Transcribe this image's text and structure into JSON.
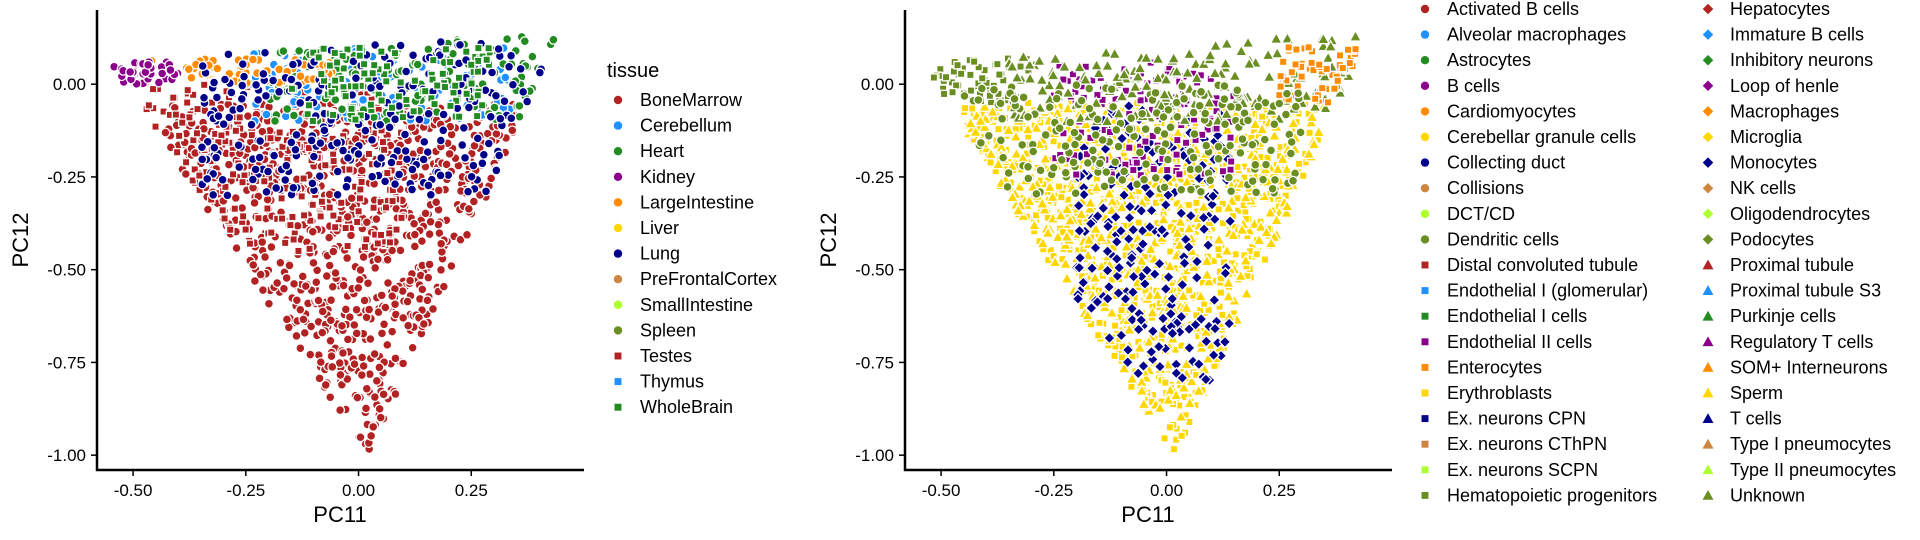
{
  "chart_data": [
    {
      "type": "scatter",
      "title": "",
      "xlabel": "PC11",
      "ylabel": "PC12",
      "xlim": [
        -0.58,
        0.5
      ],
      "ylim": [
        -1.04,
        0.2
      ],
      "xticks": [
        "-0.50",
        "-0.25",
        "0.00",
        "0.25"
      ],
      "yticks": [
        "0.00",
        "-0.25",
        "-0.50",
        "-0.75",
        "-1.00"
      ],
      "grid": false,
      "legend": {
        "title": "tissue",
        "position": "right",
        "entries": [
          {
            "label": "BoneMarrow",
            "color": "#B22222",
            "shape": "circle"
          },
          {
            "label": "Cerebellum",
            "color": "#1E90FF",
            "shape": "circle"
          },
          {
            "label": "Heart",
            "color": "#228B22",
            "shape": "circle"
          },
          {
            "label": "Kidney",
            "color": "#8B008B",
            "shape": "circle"
          },
          {
            "label": "LargeIntestine",
            "color": "#FF8C00",
            "shape": "circle"
          },
          {
            "label": "Liver",
            "color": "#FFD700",
            "shape": "circle"
          },
          {
            "label": "Lung",
            "color": "#00008B",
            "shape": "circle"
          },
          {
            "label": "PreFrontalCortex",
            "color": "#CD853F",
            "shape": "circle"
          },
          {
            "label": "SmallIntestine",
            "color": "#ADFF2F",
            "shape": "circle"
          },
          {
            "label": "Spleen",
            "color": "#6B8E23",
            "shape": "circle"
          },
          {
            "label": "Testes",
            "color": "#B22222",
            "shape": "square"
          },
          {
            "label": "Thymus",
            "color": "#1E90FF",
            "shape": "square"
          },
          {
            "label": "WholeBrain",
            "color": "#228B22",
            "shape": "square"
          }
        ]
      },
      "groups": [
        {
          "name": "BoneMarrow",
          "x_range": [
            -0.45,
            0.42
          ],
          "y_range": [
            -1.0,
            -0.05
          ],
          "note_shape": "circle"
        },
        {
          "name": "Testes",
          "x_range": [
            -0.5,
            0.1
          ],
          "y_range": [
            -0.45,
            0.0
          ]
        },
        {
          "name": "Cerebellum",
          "x_range": [
            -0.25,
            0.35
          ],
          "y_range": [
            -0.1,
            0.1
          ]
        },
        {
          "name": "Heart",
          "x_range": [
            -0.2,
            0.45
          ],
          "y_range": [
            -0.1,
            0.13
          ]
        },
        {
          "name": "LargeIntestine",
          "x_range": [
            -0.5,
            -0.05
          ],
          "y_range": [
            0.0,
            0.07
          ]
        },
        {
          "name": "Lung",
          "x_range": [
            -0.35,
            0.42
          ],
          "y_range": [
            -0.3,
            0.12
          ]
        },
        {
          "name": "Kidney",
          "x_range": [
            -0.55,
            -0.4
          ],
          "y_range": [
            0.0,
            0.06
          ]
        },
        {
          "name": "WholeBrain",
          "x_range": [
            -0.15,
            0.3
          ],
          "y_range": [
            -0.1,
            0.1
          ]
        }
      ]
    },
    {
      "type": "scatter",
      "title": "",
      "xlabel": "PC11",
      "ylabel": "PC12",
      "xlim": [
        -0.58,
        0.5
      ],
      "ylim": [
        -1.04,
        0.2
      ],
      "xticks": [
        "-0.50",
        "-0.25",
        "0.00",
        "0.25"
      ],
      "yticks": [
        "0.00",
        "-0.25",
        "-0.50",
        "-0.75",
        "-1.00"
      ],
      "grid": false,
      "legend": {
        "position": "right",
        "entries": [
          {
            "label": "Activated B cells",
            "color": "#B22222",
            "shape": "circle"
          },
          {
            "label": "Alveolar macrophages",
            "color": "#1E90FF",
            "shape": "circle"
          },
          {
            "label": "Astrocytes",
            "color": "#228B22",
            "shape": "circle"
          },
          {
            "label": "B cells",
            "color": "#8B008B",
            "shape": "circle"
          },
          {
            "label": "Cardiomyocytes",
            "color": "#FF8C00",
            "shape": "circle"
          },
          {
            "label": "Cerebellar granule cells",
            "color": "#FFD700",
            "shape": "circle"
          },
          {
            "label": "Collecting duct",
            "color": "#00008B",
            "shape": "circle"
          },
          {
            "label": "Collisions",
            "color": "#CD853F",
            "shape": "circle"
          },
          {
            "label": "DCT/CD",
            "color": "#ADFF2F",
            "shape": "circle"
          },
          {
            "label": "Dendritic cells",
            "color": "#6B8E23",
            "shape": "circle"
          },
          {
            "label": "Distal convoluted tubule",
            "color": "#B22222",
            "shape": "square"
          },
          {
            "label": "Endothelial I (glomerular)",
            "color": "#1E90FF",
            "shape": "square"
          },
          {
            "label": "Endothelial I cells",
            "color": "#228B22",
            "shape": "square"
          },
          {
            "label": "Endothelial II cells",
            "color": "#8B008B",
            "shape": "square"
          },
          {
            "label": "Enterocytes",
            "color": "#FF8C00",
            "shape": "square"
          },
          {
            "label": "Erythroblasts",
            "color": "#FFD700",
            "shape": "square"
          },
          {
            "label": "Ex. neurons CPN",
            "color": "#00008B",
            "shape": "square"
          },
          {
            "label": "Ex. neurons CThPN",
            "color": "#CD853F",
            "shape": "square"
          },
          {
            "label": "Ex. neurons SCPN",
            "color": "#ADFF2F",
            "shape": "square"
          },
          {
            "label": "Hematopoietic progenitors",
            "color": "#6B8E23",
            "shape": "square"
          },
          {
            "label": "Hepatocytes",
            "color": "#B22222",
            "shape": "diamond"
          },
          {
            "label": "Immature B cells",
            "color": "#1E90FF",
            "shape": "diamond"
          },
          {
            "label": "Inhibitory neurons",
            "color": "#228B22",
            "shape": "diamond"
          },
          {
            "label": "Loop of henle",
            "color": "#8B008B",
            "shape": "diamond"
          },
          {
            "label": "Macrophages",
            "color": "#FF8C00",
            "shape": "diamond"
          },
          {
            "label": "Microglia",
            "color": "#FFD700",
            "shape": "diamond"
          },
          {
            "label": "Monocytes",
            "color": "#00008B",
            "shape": "diamond"
          },
          {
            "label": "NK cells",
            "color": "#CD853F",
            "shape": "diamond"
          },
          {
            "label": "Oligodendrocytes",
            "color": "#ADFF2F",
            "shape": "diamond"
          },
          {
            "label": "Podocytes",
            "color": "#6B8E23",
            "shape": "diamond"
          },
          {
            "label": "Proximal tubule",
            "color": "#B22222",
            "shape": "triangle"
          },
          {
            "label": "Proximal tubule S3",
            "color": "#1E90FF",
            "shape": "triangle"
          },
          {
            "label": "Purkinje cells",
            "color": "#228B22",
            "shape": "triangle"
          },
          {
            "label": "Regulatory T cells",
            "color": "#8B008B",
            "shape": "triangle"
          },
          {
            "label": "SOM+ Interneurons",
            "color": "#FF8C00",
            "shape": "triangle"
          },
          {
            "label": "Sperm",
            "color": "#FFD700",
            "shape": "triangle"
          },
          {
            "label": "T cells",
            "color": "#00008B",
            "shape": "triangle"
          },
          {
            "label": "Type I pneumocytes",
            "color": "#CD853F",
            "shape": "triangle"
          },
          {
            "label": "Type II pneumocytes",
            "color": "#ADFF2F",
            "shape": "triangle"
          },
          {
            "label": "Unknown",
            "color": "#6B8E23",
            "shape": "triangle"
          }
        ]
      },
      "groups": [
        {
          "name": "Erythroblasts",
          "x_range": [
            -0.45,
            0.35
          ],
          "y_range": [
            -1.0,
            -0.05
          ]
        },
        {
          "name": "Sperm",
          "x_range": [
            -0.45,
            0.35
          ],
          "y_range": [
            -0.9,
            -0.05
          ]
        },
        {
          "name": "Monocytes",
          "x_range": [
            -0.2,
            0.15
          ],
          "y_range": [
            -0.8,
            -0.05
          ]
        },
        {
          "name": "Endothelial II cells",
          "x_range": [
            -0.25,
            0.15
          ],
          "y_range": [
            -0.25,
            0.06
          ]
        },
        {
          "name": "Hematopoietic progenitors",
          "x_range": [
            -0.55,
            -0.3
          ],
          "y_range": [
            -0.05,
            0.07
          ]
        },
        {
          "name": "Unknown",
          "x_range": [
            -0.35,
            0.45
          ],
          "y_range": [
            -0.1,
            0.14
          ]
        },
        {
          "name": "Enterocytes",
          "x_range": [
            0.25,
            0.42
          ],
          "y_range": [
            -0.05,
            0.1
          ]
        },
        {
          "name": "Dendritic cells",
          "x_range": [
            -0.45,
            0.3
          ],
          "y_range": [
            -0.3,
            0.0
          ]
        }
      ]
    }
  ]
}
